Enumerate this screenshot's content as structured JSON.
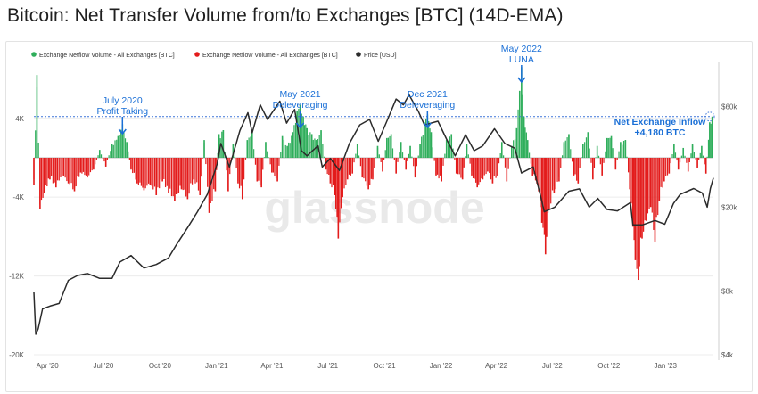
{
  "title": "Bitcoin: Net Transfer Volume from/to Exchanges [BTC] (14D-EMA)",
  "watermark": "glassnode",
  "colors": {
    "inflow": "#2fae5b",
    "outflow": "#e31b1b",
    "price": "#2b2b2b",
    "annotation": "#1a6fd6",
    "grid": "#ececec",
    "dashed": "#3b74d8"
  },
  "chart_data": {
    "type": "bar+line",
    "legend_placement": "top-left",
    "legend": [
      {
        "label": "Exchange Netflow Volume - All Exchanges [BTC]",
        "color": "#2fae5b"
      },
      {
        "label": "Exchange Netflow Volume - All Exchanges [BTC]",
        "color": "#e31b1b"
      },
      {
        "label": "Price [USD]",
        "color": "#2b2b2b"
      }
    ],
    "x_ticks": [
      "Apr '20",
      "Jul '20",
      "Oct '20",
      "Jan '21",
      "Apr '21",
      "Jul '21",
      "Oct '21",
      "Jan '22",
      "Apr '22",
      "Jul '22",
      "Oct '22",
      "Jan '23"
    ],
    "x_range": [
      "2020-03-10",
      "2023-03-20"
    ],
    "y_left": {
      "ticks": [
        {
          "value": 4000,
          "label": "4K"
        },
        {
          "value": -4000,
          "label": "-4K"
        },
        {
          "value": -12000,
          "label": "-12K"
        },
        {
          "value": -20000,
          "label": "-20K"
        }
      ],
      "range": [
        -20000,
        9500
      ],
      "unit": "BTC"
    },
    "y_right": {
      "scale": "log",
      "ticks": [
        {
          "value": 4000,
          "label": "$4k"
        },
        {
          "value": 8000,
          "label": "$8k"
        },
        {
          "value": 20000,
          "label": "$20k"
        },
        {
          "value": 60000,
          "label": "$60k"
        }
      ],
      "range": [
        4000,
        95000
      ],
      "unit": "USD"
    },
    "reference_line": {
      "value": 4180,
      "style": "dashed"
    },
    "netflow": [
      {
        "x": "2020-03-10",
        "y": -2800
      },
      {
        "x": "2020-03-15",
        "y": 8400
      },
      {
        "x": "2020-03-20",
        "y": -5200
      },
      {
        "x": "2020-03-27",
        "y": -3600
      },
      {
        "x": "2020-04-05",
        "y": -2200
      },
      {
        "x": "2020-04-15",
        "y": -3000
      },
      {
        "x": "2020-04-25",
        "y": -1800
      },
      {
        "x": "2020-05-05",
        "y": -2600
      },
      {
        "x": "2020-05-15",
        "y": -3400
      },
      {
        "x": "2020-05-25",
        "y": -1500
      },
      {
        "x": "2020-06-05",
        "y": -2000
      },
      {
        "x": "2020-06-15",
        "y": -1200
      },
      {
        "x": "2020-06-25",
        "y": 800
      },
      {
        "x": "2020-07-05",
        "y": -900
      },
      {
        "x": "2020-07-15",
        "y": 1400
      },
      {
        "x": "2020-07-25",
        "y": 2200
      },
      {
        "x": "2020-08-01",
        "y": 3400
      },
      {
        "x": "2020-08-08",
        "y": 1600
      },
      {
        "x": "2020-08-15",
        "y": -1200
      },
      {
        "x": "2020-08-25",
        "y": -2600
      },
      {
        "x": "2020-09-05",
        "y": -3300
      },
      {
        "x": "2020-09-15",
        "y": -2800
      },
      {
        "x": "2020-09-25",
        "y": -3800
      },
      {
        "x": "2020-10-05",
        "y": -2400
      },
      {
        "x": "2020-10-15",
        "y": -3600
      },
      {
        "x": "2020-10-25",
        "y": -4400
      },
      {
        "x": "2020-11-05",
        "y": -3200
      },
      {
        "x": "2020-11-15",
        "y": -4200
      },
      {
        "x": "2020-11-25",
        "y": -2200
      },
      {
        "x": "2020-12-05",
        "y": -3800
      },
      {
        "x": "2020-12-12",
        "y": 1800
      },
      {
        "x": "2020-12-20",
        "y": -5600
      },
      {
        "x": "2020-12-30",
        "y": -3400
      },
      {
        "x": "2021-01-05",
        "y": 2400
      },
      {
        "x": "2021-01-12",
        "y": 2800
      },
      {
        "x": "2021-01-20",
        "y": -3400
      },
      {
        "x": "2021-01-28",
        "y": 1400
      },
      {
        "x": "2021-02-05",
        "y": -2600
      },
      {
        "x": "2021-02-12",
        "y": -4200
      },
      {
        "x": "2021-02-20",
        "y": 1800
      },
      {
        "x": "2021-02-28",
        "y": 2600
      },
      {
        "x": "2021-03-08",
        "y": -2400
      },
      {
        "x": "2021-03-15",
        "y": -3000
      },
      {
        "x": "2021-03-22",
        "y": 1600
      },
      {
        "x": "2021-04-01",
        "y": -1500
      },
      {
        "x": "2021-04-10",
        "y": -2400
      },
      {
        "x": "2021-04-18",
        "y": 2200
      },
      {
        "x": "2021-04-26",
        "y": 1200
      },
      {
        "x": "2021-05-05",
        "y": 2600
      },
      {
        "x": "2021-05-12",
        "y": 4800
      },
      {
        "x": "2021-05-17",
        "y": 5400
      },
      {
        "x": "2021-05-22",
        "y": 4200
      },
      {
        "x": "2021-05-28",
        "y": 3000
      },
      {
        "x": "2021-06-05",
        "y": 2400
      },
      {
        "x": "2021-06-12",
        "y": 1800
      },
      {
        "x": "2021-06-20",
        "y": 2800
      },
      {
        "x": "2021-06-28",
        "y": -1200
      },
      {
        "x": "2021-07-05",
        "y": -2600
      },
      {
        "x": "2021-07-12",
        "y": -3800
      },
      {
        "x": "2021-07-18",
        "y": -8200
      },
      {
        "x": "2021-07-25",
        "y": -4000
      },
      {
        "x": "2021-08-02",
        "y": -2200
      },
      {
        "x": "2021-08-10",
        "y": -1600
      },
      {
        "x": "2021-08-18",
        "y": 1400
      },
      {
        "x": "2021-08-26",
        "y": -2000
      },
      {
        "x": "2021-09-05",
        "y": -3200
      },
      {
        "x": "2021-09-12",
        "y": -2200
      },
      {
        "x": "2021-09-20",
        "y": 1200
      },
      {
        "x": "2021-09-28",
        "y": -1400
      },
      {
        "x": "2021-10-05",
        "y": 2000
      },
      {
        "x": "2021-10-12",
        "y": 2400
      },
      {
        "x": "2021-10-20",
        "y": -1600
      },
      {
        "x": "2021-10-28",
        "y": 1600
      },
      {
        "x": "2021-11-05",
        "y": -1200
      },
      {
        "x": "2021-11-12",
        "y": 1200
      },
      {
        "x": "2021-11-20",
        "y": -2000
      },
      {
        "x": "2021-11-28",
        "y": 1400
      },
      {
        "x": "2021-12-05",
        "y": 3600
      },
      {
        "x": "2021-12-10",
        "y": 4400
      },
      {
        "x": "2021-12-16",
        "y": 2600
      },
      {
        "x": "2021-12-24",
        "y": -1800
      },
      {
        "x": "2022-01-02",
        "y": -2400
      },
      {
        "x": "2022-01-10",
        "y": 1800
      },
      {
        "x": "2022-01-18",
        "y": 2400
      },
      {
        "x": "2022-01-26",
        "y": -1600
      },
      {
        "x": "2022-02-05",
        "y": -2200
      },
      {
        "x": "2022-02-12",
        "y": 1400
      },
      {
        "x": "2022-02-20",
        "y": -1800
      },
      {
        "x": "2022-03-01",
        "y": -3000
      },
      {
        "x": "2022-03-10",
        "y": -2200
      },
      {
        "x": "2022-03-18",
        "y": -1400
      },
      {
        "x": "2022-03-26",
        "y": -2600
      },
      {
        "x": "2022-04-03",
        "y": -1800
      },
      {
        "x": "2022-04-10",
        "y": 1600
      },
      {
        "x": "2022-04-18",
        "y": -2400
      },
      {
        "x": "2022-04-26",
        "y": 1200
      },
      {
        "x": "2022-05-04",
        "y": 3000
      },
      {
        "x": "2022-05-09",
        "y": 6800
      },
      {
        "x": "2022-05-12",
        "y": 9200
      },
      {
        "x": "2022-05-16",
        "y": 4200
      },
      {
        "x": "2022-05-22",
        "y": 1800
      },
      {
        "x": "2022-05-30",
        "y": -1800
      },
      {
        "x": "2022-06-06",
        "y": -2600
      },
      {
        "x": "2022-06-14",
        "y": -6600
      },
      {
        "x": "2022-06-20",
        "y": -9800
      },
      {
        "x": "2022-06-26",
        "y": -5200
      },
      {
        "x": "2022-07-04",
        "y": -3600
      },
      {
        "x": "2022-07-12",
        "y": -2400
      },
      {
        "x": "2022-07-20",
        "y": 1600
      },
      {
        "x": "2022-07-28",
        "y": 2400
      },
      {
        "x": "2022-08-05",
        "y": -1800
      },
      {
        "x": "2022-08-12",
        "y": -2600
      },
      {
        "x": "2022-08-20",
        "y": 1400
      },
      {
        "x": "2022-08-28",
        "y": 2600
      },
      {
        "x": "2022-09-05",
        "y": -2200
      },
      {
        "x": "2022-09-12",
        "y": 1200
      },
      {
        "x": "2022-09-20",
        "y": -1800
      },
      {
        "x": "2022-09-28",
        "y": 2000
      },
      {
        "x": "2022-10-05",
        "y": 2200
      },
      {
        "x": "2022-10-12",
        "y": -1200
      },
      {
        "x": "2022-10-20",
        "y": 1600
      },
      {
        "x": "2022-10-28",
        "y": 1800
      },
      {
        "x": "2022-11-04",
        "y": -3200
      },
      {
        "x": "2022-11-09",
        "y": -7000
      },
      {
        "x": "2022-11-13",
        "y": -10400
      },
      {
        "x": "2022-11-18",
        "y": -12400
      },
      {
        "x": "2022-11-24",
        "y": -8200
      },
      {
        "x": "2022-12-01",
        "y": -6400
      },
      {
        "x": "2022-12-08",
        "y": -5000
      },
      {
        "x": "2022-12-15",
        "y": -8600
      },
      {
        "x": "2022-12-22",
        "y": -4400
      },
      {
        "x": "2022-12-30",
        "y": -2400
      },
      {
        "x": "2023-01-07",
        "y": -1600
      },
      {
        "x": "2023-01-15",
        "y": 1400
      },
      {
        "x": "2023-01-22",
        "y": -1200
      },
      {
        "x": "2023-01-30",
        "y": 1000
      },
      {
        "x": "2023-02-07",
        "y": -1400
      },
      {
        "x": "2023-02-14",
        "y": 1400
      },
      {
        "x": "2023-02-22",
        "y": -1000
      },
      {
        "x": "2023-03-01",
        "y": 1200
      },
      {
        "x": "2023-03-08",
        "y": -1600
      },
      {
        "x": "2023-03-14",
        "y": 3600
      },
      {
        "x": "2023-03-18",
        "y": 4180
      }
    ],
    "price": [
      {
        "x": "2020-03-10",
        "y": 7900
      },
      {
        "x": "2020-03-13",
        "y": 5000
      },
      {
        "x": "2020-03-17",
        "y": 5300
      },
      {
        "x": "2020-03-24",
        "y": 6600
      },
      {
        "x": "2020-04-05",
        "y": 6800
      },
      {
        "x": "2020-04-20",
        "y": 7000
      },
      {
        "x": "2020-05-05",
        "y": 9000
      },
      {
        "x": "2020-05-20",
        "y": 9500
      },
      {
        "x": "2020-06-05",
        "y": 9700
      },
      {
        "x": "2020-06-25",
        "y": 9200
      },
      {
        "x": "2020-07-15",
        "y": 9200
      },
      {
        "x": "2020-07-28",
        "y": 11000
      },
      {
        "x": "2020-08-15",
        "y": 11800
      },
      {
        "x": "2020-09-05",
        "y": 10300
      },
      {
        "x": "2020-09-25",
        "y": 10700
      },
      {
        "x": "2020-10-15",
        "y": 11500
      },
      {
        "x": "2020-10-28",
        "y": 13300
      },
      {
        "x": "2020-11-15",
        "y": 16000
      },
      {
        "x": "2020-12-01",
        "y": 19000
      },
      {
        "x": "2020-12-17",
        "y": 23000
      },
      {
        "x": "2021-01-02",
        "y": 32000
      },
      {
        "x": "2021-01-08",
        "y": 40000
      },
      {
        "x": "2021-01-22",
        "y": 31000
      },
      {
        "x": "2021-02-08",
        "y": 46000
      },
      {
        "x": "2021-02-21",
        "y": 56000
      },
      {
        "x": "2021-02-28",
        "y": 45000
      },
      {
        "x": "2021-03-13",
        "y": 61000
      },
      {
        "x": "2021-03-25",
        "y": 52000
      },
      {
        "x": "2021-04-14",
        "y": 63500
      },
      {
        "x": "2021-04-25",
        "y": 50000
      },
      {
        "x": "2021-05-08",
        "y": 58000
      },
      {
        "x": "2021-05-19",
        "y": 37000
      },
      {
        "x": "2021-05-28",
        "y": 35000
      },
      {
        "x": "2021-06-15",
        "y": 39000
      },
      {
        "x": "2021-06-22",
        "y": 31000
      },
      {
        "x": "2021-07-05",
        "y": 34000
      },
      {
        "x": "2021-07-20",
        "y": 29800
      },
      {
        "x": "2021-08-05",
        "y": 40000
      },
      {
        "x": "2021-08-22",
        "y": 49000
      },
      {
        "x": "2021-09-07",
        "y": 52000
      },
      {
        "x": "2021-09-21",
        "y": 41000
      },
      {
        "x": "2021-10-05",
        "y": 51000
      },
      {
        "x": "2021-10-20",
        "y": 65000
      },
      {
        "x": "2021-11-01",
        "y": 61000
      },
      {
        "x": "2021-11-10",
        "y": 68000
      },
      {
        "x": "2021-11-25",
        "y": 57000
      },
      {
        "x": "2021-12-05",
        "y": 49000
      },
      {
        "x": "2021-12-27",
        "y": 51000
      },
      {
        "x": "2022-01-10",
        "y": 42000
      },
      {
        "x": "2022-01-24",
        "y": 35000
      },
      {
        "x": "2022-02-10",
        "y": 44000
      },
      {
        "x": "2022-02-24",
        "y": 37000
      },
      {
        "x": "2022-03-10",
        "y": 39000
      },
      {
        "x": "2022-03-29",
        "y": 47000
      },
      {
        "x": "2022-04-15",
        "y": 40000
      },
      {
        "x": "2022-05-01",
        "y": 38000
      },
      {
        "x": "2022-05-12",
        "y": 29000
      },
      {
        "x": "2022-05-31",
        "y": 31000
      },
      {
        "x": "2022-06-13",
        "y": 22000
      },
      {
        "x": "2022-06-18",
        "y": 19000
      },
      {
        "x": "2022-07-05",
        "y": 20000
      },
      {
        "x": "2022-07-28",
        "y": 23800
      },
      {
        "x": "2022-08-14",
        "y": 24400
      },
      {
        "x": "2022-08-30",
        "y": 20000
      },
      {
        "x": "2022-09-13",
        "y": 22000
      },
      {
        "x": "2022-09-28",
        "y": 19500
      },
      {
        "x": "2022-10-15",
        "y": 19200
      },
      {
        "x": "2022-11-05",
        "y": 21000
      },
      {
        "x": "2022-11-09",
        "y": 16500
      },
      {
        "x": "2022-11-25",
        "y": 16500
      },
      {
        "x": "2022-12-15",
        "y": 17300
      },
      {
        "x": "2022-12-31",
        "y": 16600
      },
      {
        "x": "2023-01-14",
        "y": 20800
      },
      {
        "x": "2023-01-25",
        "y": 23000
      },
      {
        "x": "2023-02-16",
        "y": 24500
      },
      {
        "x": "2023-03-02",
        "y": 23300
      },
      {
        "x": "2023-03-10",
        "y": 20000
      },
      {
        "x": "2023-03-15",
        "y": 24500
      },
      {
        "x": "2023-03-20",
        "y": 27500
      }
    ],
    "annotations": [
      {
        "lines": [
          "July 2020",
          "Profit Taking"
        ],
        "x": "2020-08-01",
        "arrow": true
      },
      {
        "lines": [
          "May 2021",
          "Deleveraging"
        ],
        "x": "2021-05-17",
        "arrow": true
      },
      {
        "lines": [
          "Dec 2021",
          "Deleveraging"
        ],
        "x": "2021-12-10",
        "arrow": true
      },
      {
        "lines": [
          "May 2022",
          "LUNA"
        ],
        "x": "2022-05-12",
        "arrow": true
      },
      {
        "lines": [
          "Net Exchange Inflow",
          "+4,180 BTC"
        ],
        "x": "2023-03-18",
        "arrow": false,
        "bold": true
      }
    ]
  }
}
